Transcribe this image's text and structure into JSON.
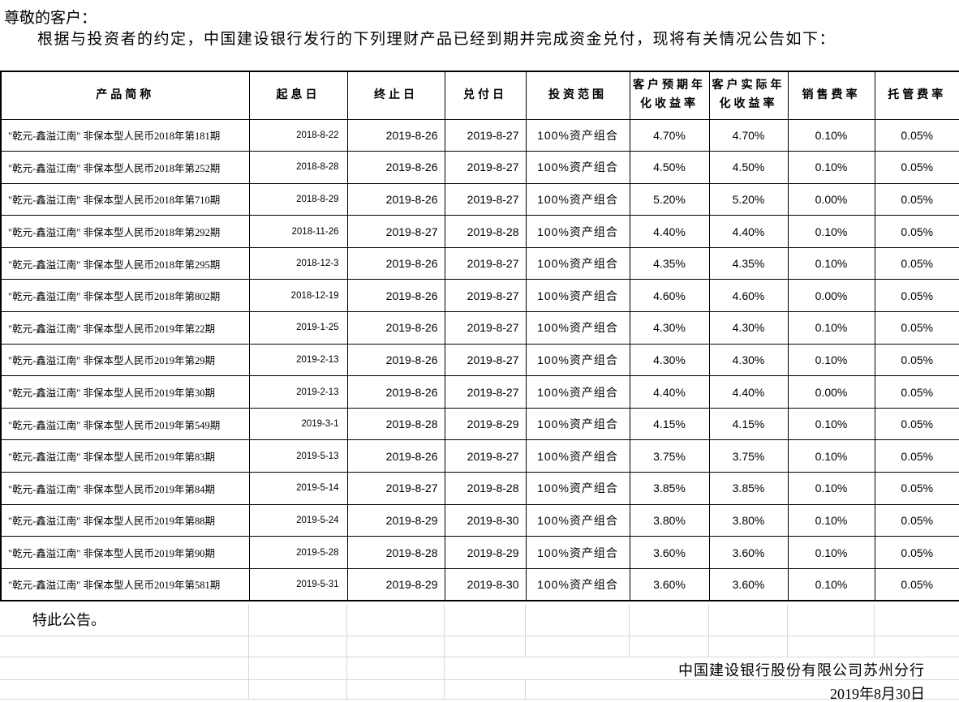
{
  "document": {
    "salutation": "尊敬的客户：",
    "intro": "根据与投资者的约定，中国建设银行发行的下列理财产品已经到期并完成资金兑付，现将有关情况公告如下：",
    "closing": "特此公告。",
    "issuer": "中国建设银行股份有限公司苏州分行",
    "date": "2019年8月30日"
  },
  "colors": {
    "background": "#ffffff",
    "text": "#000000",
    "table_border": "#000000",
    "grid_line": "#d8d8d8"
  },
  "table": {
    "headers": [
      "产品简称",
      "起息日",
      "终止日",
      "兑付日",
      "投资范围",
      "客户预期年化收益率",
      "客户实际年化收益率",
      "销售费率",
      "托管费率"
    ],
    "rows": [
      [
        "\"乾元-鑫溢江南\" 非保本型人民币2018年第181期",
        "2018-8-22",
        "2019-8-26",
        "2019-8-27",
        "100%资产组合",
        "4.70%",
        "4.70%",
        "0.10%",
        "0.05%"
      ],
      [
        "\"乾元-鑫溢江南\" 非保本型人民币2018年第252期",
        "2018-8-28",
        "2019-8-26",
        "2019-8-27",
        "100%资产组合",
        "4.50%",
        "4.50%",
        "0.10%",
        "0.05%"
      ],
      [
        "\"乾元-鑫溢江南\" 非保本型人民币2018年第710期",
        "2018-8-29",
        "2019-8-26",
        "2019-8-27",
        "100%资产组合",
        "5.20%",
        "5.20%",
        "0.00%",
        "0.05%"
      ],
      [
        "\"乾元-鑫溢江南\" 非保本型人民币2018年第292期",
        "2018-11-26",
        "2019-8-27",
        "2019-8-28",
        "100%资产组合",
        "4.40%",
        "4.40%",
        "0.10%",
        "0.05%"
      ],
      [
        "\"乾元-鑫溢江南\" 非保本型人民币2018年第295期",
        "2018-12-3",
        "2019-8-26",
        "2019-8-27",
        "100%资产组合",
        "4.35%",
        "4.35%",
        "0.10%",
        "0.05%"
      ],
      [
        "\"乾元-鑫溢江南\" 非保本型人民币2018年第802期",
        "2018-12-19",
        "2019-8-26",
        "2019-8-27",
        "100%资产组合",
        "4.60%",
        "4.60%",
        "0.00%",
        "0.05%"
      ],
      [
        "\"乾元-鑫溢江南\" 非保本型人民币2019年第22期",
        "2019-1-25",
        "2019-8-26",
        "2019-8-27",
        "100%资产组合",
        "4.30%",
        "4.30%",
        "0.10%",
        "0.05%"
      ],
      [
        "\"乾元-鑫溢江南\" 非保本型人民币2019年第29期",
        "2019-2-13",
        "2019-8-26",
        "2019-8-27",
        "100%资产组合",
        "4.30%",
        "4.30%",
        "0.10%",
        "0.05%"
      ],
      [
        "\"乾元-鑫溢江南\" 非保本型人民币2019年第30期",
        "2019-2-13",
        "2019-8-26",
        "2019-8-27",
        "100%资产组合",
        "4.40%",
        "4.40%",
        "0.00%",
        "0.05%"
      ],
      [
        "\"乾元-鑫溢江南\" 非保本型人民币2019年第549期",
        "2019-3-1",
        "2019-8-28",
        "2019-8-29",
        "100%资产组合",
        "4.15%",
        "4.15%",
        "0.10%",
        "0.05%"
      ],
      [
        "\"乾元-鑫溢江南\" 非保本型人民币2019年第83期",
        "2019-5-13",
        "2019-8-26",
        "2019-8-27",
        "100%资产组合",
        "3.75%",
        "3.75%",
        "0.10%",
        "0.05%"
      ],
      [
        "\"乾元-鑫溢江南\" 非保本型人民币2019年第84期",
        "2019-5-14",
        "2019-8-27",
        "2019-8-28",
        "100%资产组合",
        "3.85%",
        "3.85%",
        "0.10%",
        "0.05%"
      ],
      [
        "\"乾元-鑫溢江南\" 非保本型人民币2019年第88期",
        "2019-5-24",
        "2019-8-29",
        "2019-8-30",
        "100%资产组合",
        "3.80%",
        "3.80%",
        "0.10%",
        "0.05%"
      ],
      [
        "\"乾元-鑫溢江南\" 非保本型人民币2019年第90期",
        "2019-5-28",
        "2019-8-28",
        "2019-8-29",
        "100%资产组合",
        "3.60%",
        "3.60%",
        "0.10%",
        "0.05%"
      ],
      [
        "\"乾元-鑫溢江南\" 非保本型人民币2019年第581期",
        "2019-5-31",
        "2019-8-29",
        "2019-8-30",
        "100%资产组合",
        "3.60%",
        "3.60%",
        "0.10%",
        "0.05%"
      ]
    ]
  }
}
